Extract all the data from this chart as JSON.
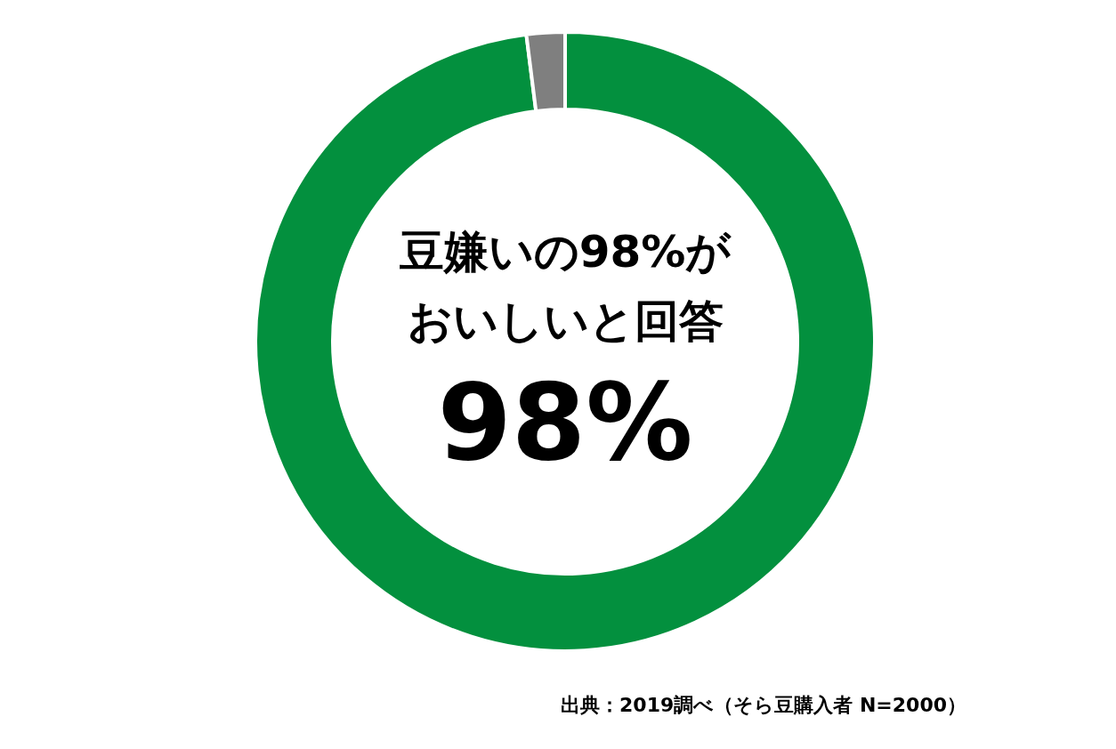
{
  "chart_data": {
    "type": "donut",
    "title": "豆嫌いの98%がおいしいと回答",
    "categories": [
      null,
      null
    ],
    "values": [
      98,
      2
    ],
    "colors": [
      "#03903e",
      "#7f7f7f"
    ],
    "value_labels": [
      "98%",
      null
    ],
    "legend": false,
    "annotations": [
      "出典：2019調べ（そら豆購入者 N=2000）"
    ]
  }
}
